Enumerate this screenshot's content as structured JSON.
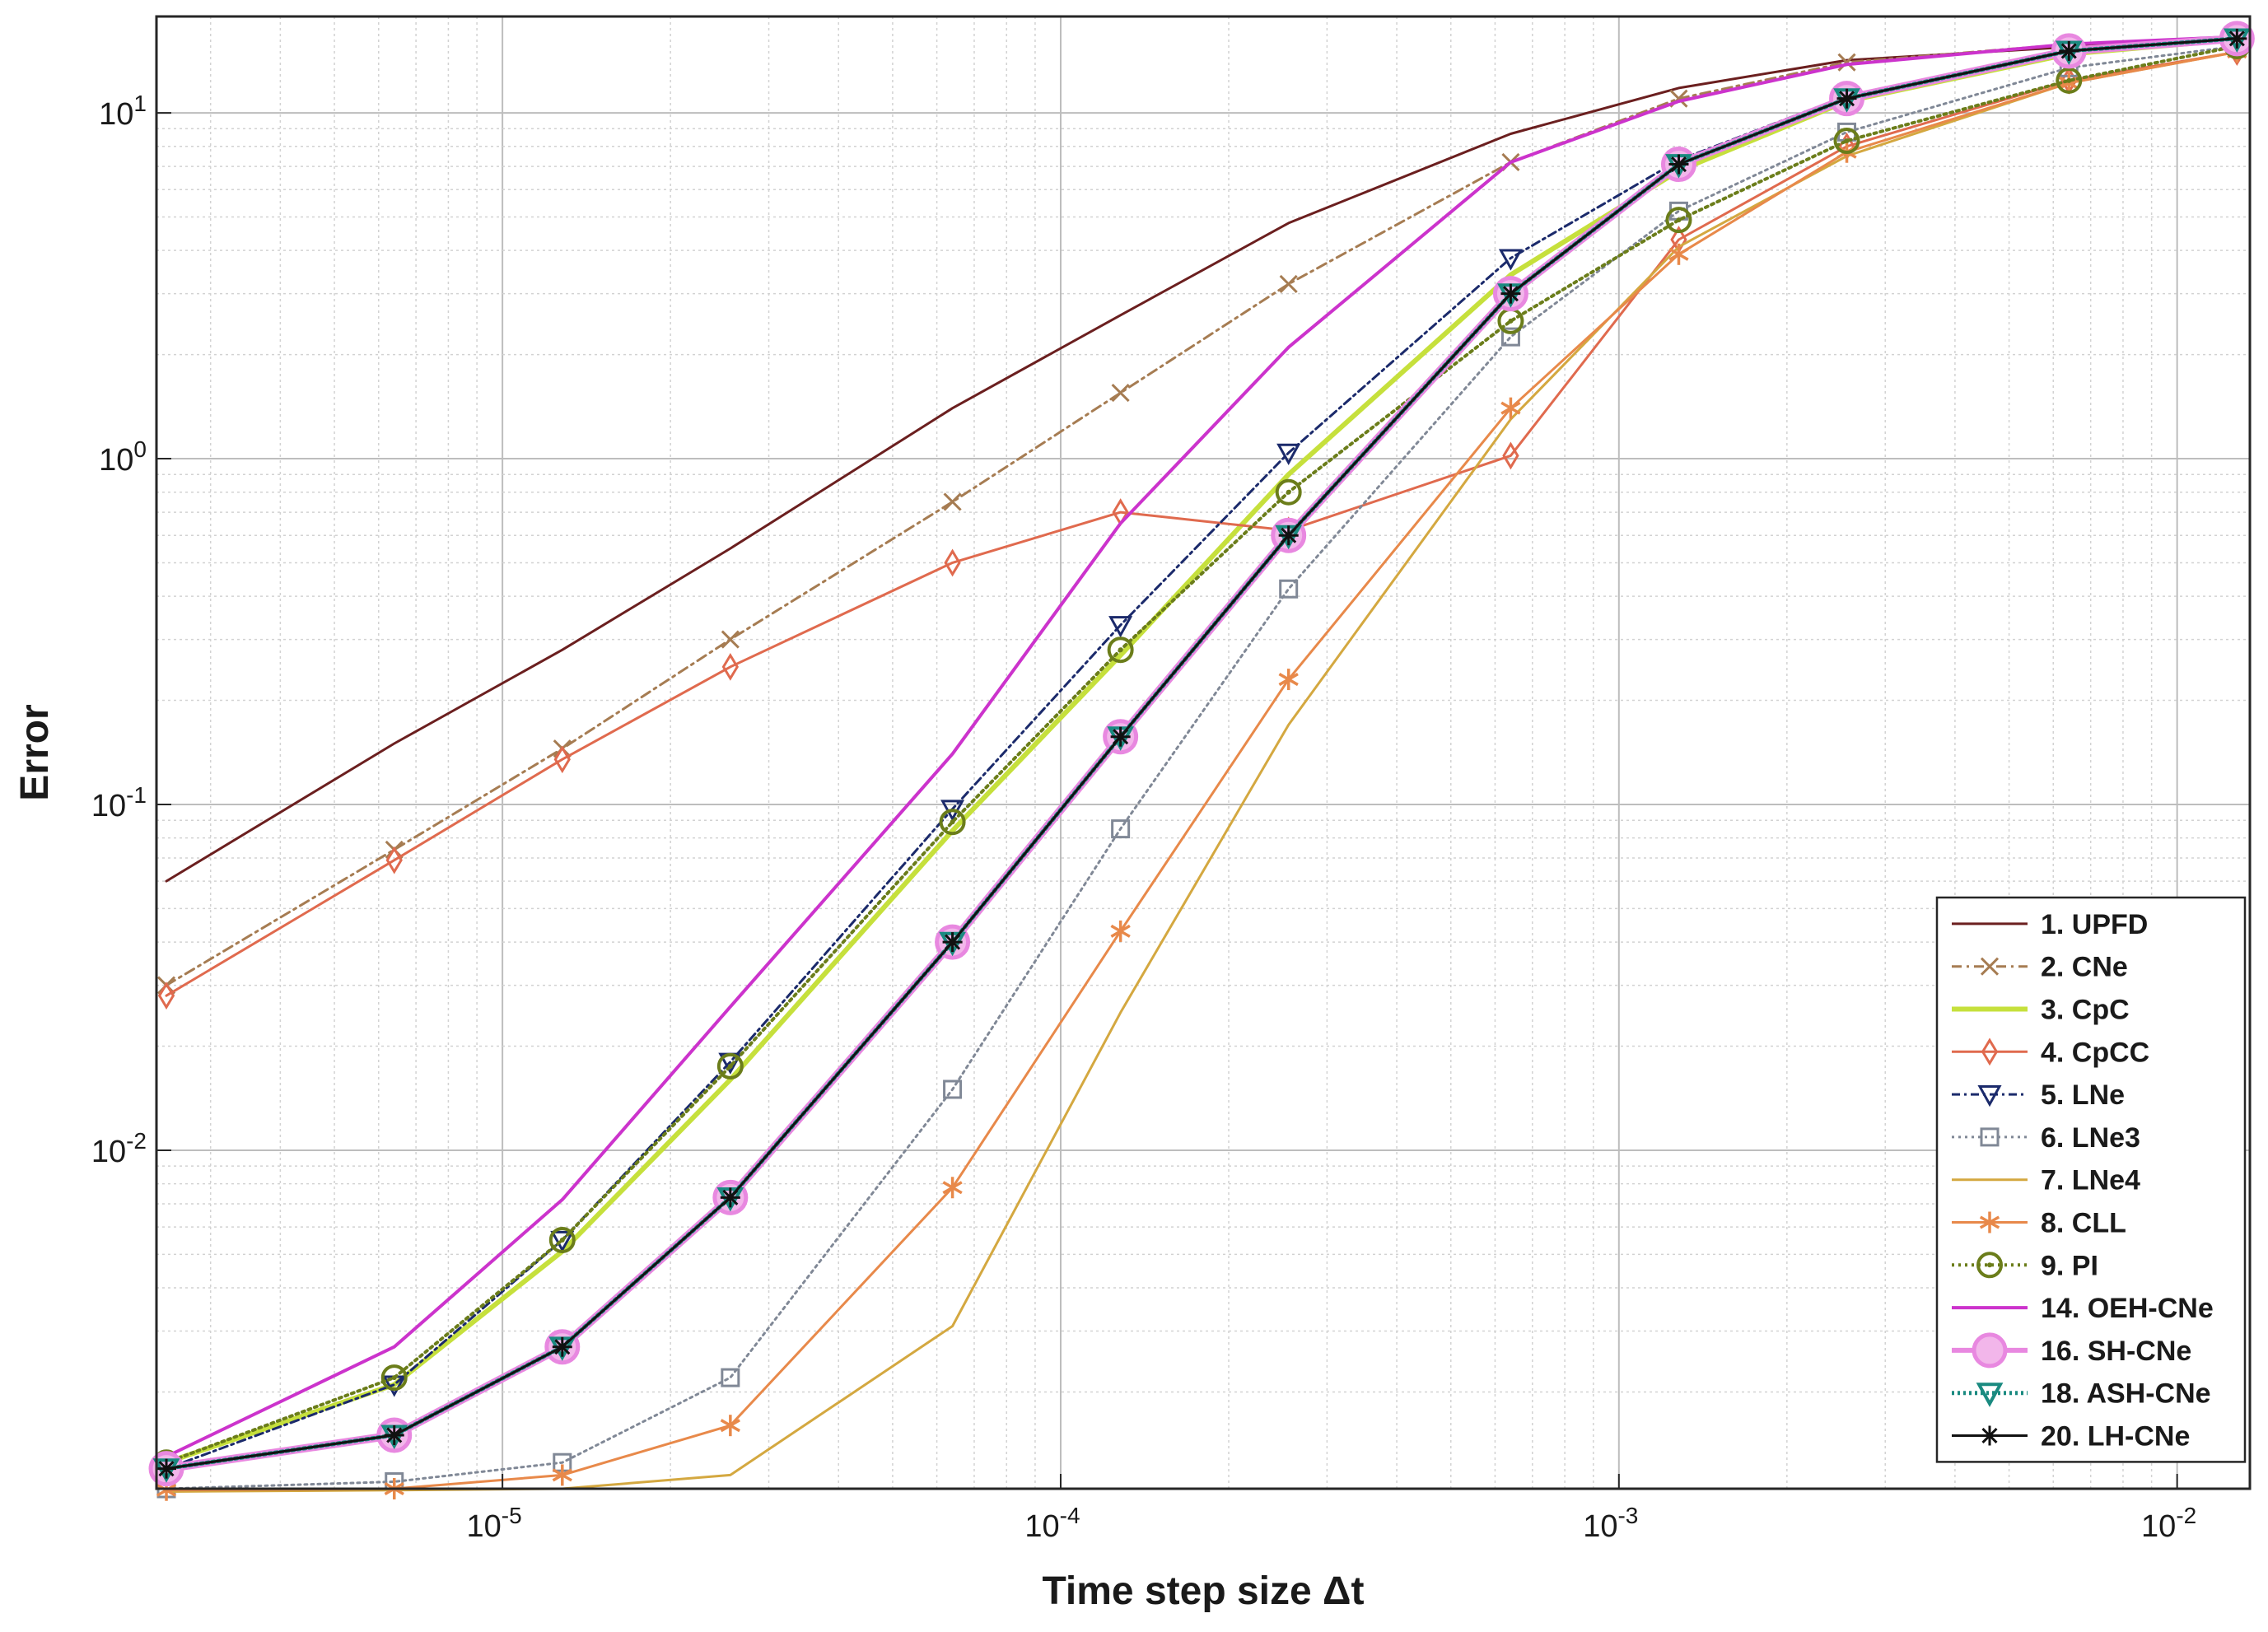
{
  "chart_data": {
    "type": "line",
    "title": "",
    "xlabel": "Time step size Δt",
    "ylabel": "Error",
    "xscale": "log",
    "yscale": "log",
    "xlim": [
      2.4e-06,
      0.0135
    ],
    "ylim": [
      0.00105,
      19
    ],
    "grid": true,
    "legend_position": "bottom-right",
    "x_ticks": [
      {
        "value": 1e-05,
        "base": "10",
        "exp": "-5"
      },
      {
        "value": 0.0001,
        "base": "10",
        "exp": "-4"
      },
      {
        "value": 0.001,
        "base": "10",
        "exp": "-3"
      },
      {
        "value": 0.01,
        "base": "10",
        "exp": "-2"
      }
    ],
    "y_ticks": [
      {
        "value": 0.01,
        "base": "10",
        "exp": "-2"
      },
      {
        "value": 0.1,
        "base": "10",
        "exp": "-1"
      },
      {
        "value": 1,
        "base": "10",
        "exp": "0"
      },
      {
        "value": 10,
        "base": "10",
        "exp": "1"
      }
    ],
    "x": [
      2.5e-06,
      6.4e-06,
      1.28e-05,
      2.56e-05,
      6.4e-05,
      0.000128,
      0.000256,
      0.00064,
      0.00128,
      0.00256,
      0.0064,
      0.0128
    ],
    "series": [
      {
        "name": "1. UPFD",
        "color": "#6b1f1f",
        "width": 3,
        "dash": "",
        "marker": "none",
        "values": [
          0.06,
          0.15,
          0.28,
          0.55,
          1.4,
          2.6,
          4.8,
          8.7,
          11.8,
          14.2,
          15.5,
          16.5
        ]
      },
      {
        "name": "2. CNe",
        "color": "#a67c52",
        "width": 3,
        "dash": "12 6 3 6",
        "marker": "x",
        "values": [
          0.03,
          0.074,
          0.145,
          0.3,
          0.75,
          1.55,
          3.2,
          7.2,
          11.0,
          14.0,
          15.8,
          16.6
        ]
      },
      {
        "name": "3. CpC",
        "color": "#c6e03c",
        "width": 6,
        "dash": "",
        "marker": "none",
        "values": [
          0.00125,
          0.0021,
          0.0051,
          0.016,
          0.084,
          0.27,
          0.9,
          3.4,
          6.8,
          10.8,
          14.8,
          16.3
        ]
      },
      {
        "name": "4. CpCC",
        "color": "#e06a4e",
        "width": 3,
        "dash": "",
        "marker": "diamond",
        "values": [
          0.028,
          0.069,
          0.135,
          0.25,
          0.5,
          0.7,
          0.62,
          1.02,
          4.3,
          8.0,
          12.4,
          15.0
        ]
      },
      {
        "name": "5. LNe",
        "color": "#1b2a6b",
        "width": 3,
        "dash": "10 5 3 5",
        "marker": "triangle-down",
        "values": [
          0.0012,
          0.0021,
          0.0055,
          0.018,
          0.097,
          0.33,
          1.04,
          3.8,
          7.3,
          11.2,
          15.2,
          16.5
        ]
      },
      {
        "name": "6. LNe3",
        "color": "#808896",
        "width": 3,
        "dash": "3 5",
        "marker": "square",
        "values": [
          0.00105,
          0.0011,
          0.00125,
          0.0022,
          0.015,
          0.085,
          0.42,
          2.25,
          5.2,
          8.8,
          13.5,
          15.6
        ]
      },
      {
        "name": "7. LNe4",
        "color": "#d4a840",
        "width": 3,
        "dash": "",
        "marker": "none",
        "values": [
          0.00103,
          0.00104,
          0.00105,
          0.00115,
          0.0031,
          0.025,
          0.17,
          1.3,
          4.1,
          7.5,
          12.2,
          15.0
        ]
      },
      {
        "name": "8. CLL",
        "color": "#e8894a",
        "width": 3,
        "dash": "",
        "marker": "asterisk",
        "values": [
          0.00104,
          0.00105,
          0.00115,
          0.0016,
          0.0078,
          0.043,
          0.23,
          1.4,
          3.9,
          7.7,
          12.2,
          15.0
        ]
      },
      {
        "name": "9. PI",
        "color": "#6b7d1a",
        "width": 4,
        "dash": "3 5",
        "marker": "circle-dot",
        "values": [
          0.00125,
          0.0022,
          0.0055,
          0.0175,
          0.089,
          0.28,
          0.8,
          2.5,
          4.9,
          8.3,
          12.4,
          15.6
        ]
      },
      {
        "name": "14. OEH-CNe",
        "color": "#cc33cc",
        "width": 4,
        "dash": "",
        "marker": "none",
        "values": [
          0.0013,
          0.0027,
          0.0072,
          0.026,
          0.14,
          0.65,
          2.1,
          7.2,
          10.8,
          13.8,
          15.8,
          16.6
        ]
      },
      {
        "name": "16. SH-CNe",
        "color": "#e888e0",
        "width": 10,
        "dash": "",
        "marker": "big-circle",
        "values": [
          0.0012,
          0.0015,
          0.0027,
          0.0073,
          0.04,
          0.157,
          0.6,
          3.0,
          7.1,
          11.0,
          15.1,
          16.4
        ]
      },
      {
        "name": "18. ASH-CNe",
        "color": "#1a8a80",
        "width": 5,
        "dash": "3 4",
        "marker": "triangle-down-big",
        "values": [
          0.0012,
          0.0015,
          0.0027,
          0.0073,
          0.04,
          0.157,
          0.6,
          3.0,
          7.1,
          11.0,
          15.1,
          16.4
        ]
      },
      {
        "name": "20. LH-CNe",
        "color": "#111111",
        "width": 3,
        "dash": "",
        "marker": "star",
        "values": [
          0.0012,
          0.0015,
          0.0027,
          0.0073,
          0.04,
          0.157,
          0.6,
          3.0,
          7.1,
          11.0,
          15.1,
          16.4
        ]
      }
    ]
  }
}
